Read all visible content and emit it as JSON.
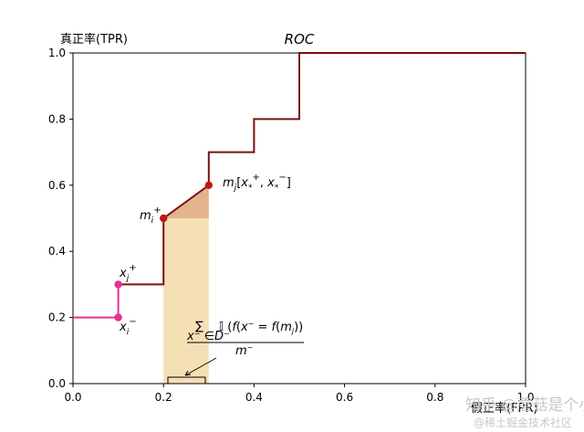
{
  "chart_data": {
    "type": "line",
    "title": "ROC",
    "ylabel": "真正率(TPR)",
    "xlabel": "假正率(FPR)",
    "xlim": [
      0,
      1
    ],
    "ylim": [
      0,
      1
    ],
    "x_ticks": [
      "0.0",
      "0.2",
      "0.4",
      "0.6",
      "0.8",
      "1.0"
    ],
    "y_ticks": [
      "0.0",
      "0.2",
      "0.4",
      "0.6",
      "0.8",
      "1.0"
    ],
    "grid": false,
    "series": [
      {
        "color": "#e0338f",
        "points": [
          [
            0.0,
            0.2
          ],
          [
            0.1,
            0.2
          ],
          [
            0.1,
            0.3
          ]
        ]
      },
      {
        "color": "#7a0f0f",
        "points": [
          [
            0.1,
            0.3
          ],
          [
            0.2,
            0.3
          ],
          [
            0.2,
            0.5
          ],
          [
            0.3,
            0.6
          ],
          [
            0.3,
            0.7
          ],
          [
            0.4,
            0.7
          ],
          [
            0.4,
            0.8
          ],
          [
            0.5,
            0.8
          ],
          [
            0.5,
            1.0
          ],
          [
            1.0,
            1.0
          ]
        ]
      }
    ],
    "highlighted_points": [
      {
        "x": 0.1,
        "y": 0.3,
        "label": "x_j^+",
        "color": "#e0338f"
      },
      {
        "x": 0.1,
        "y": 0.2,
        "label": "x_i^-",
        "color": "#e0338f"
      },
      {
        "x": 0.2,
        "y": 0.5,
        "label": "m_i^+",
        "color": "#c01818"
      },
      {
        "x": 0.3,
        "y": 0.6,
        "label": "m_j[x_*^+, x_*^-]",
        "color": "#c01818"
      }
    ],
    "shaded_regions": [
      {
        "x": [
          0.2,
          0.3
        ],
        "y_bottom": [
          0,
          0
        ],
        "y_top": [
          0.5,
          0.5
        ],
        "color": "#f5dfb5"
      },
      {
        "x": [
          0.2,
          0.3
        ],
        "y_bottom": [
          0.5,
          0.5
        ],
        "y_top": [
          0.5,
          0.6
        ],
        "color": "#e2b48c"
      }
    ],
    "annotation_formula": "Σ_{x⁻∈D⁻} 𝕀(f(x⁻ = f(m_j)) / m⁻"
  },
  "watermark": {
    "line1": "知乎 @蘑菇是个小猪",
    "line2": "@稀土掘金技术社区"
  }
}
